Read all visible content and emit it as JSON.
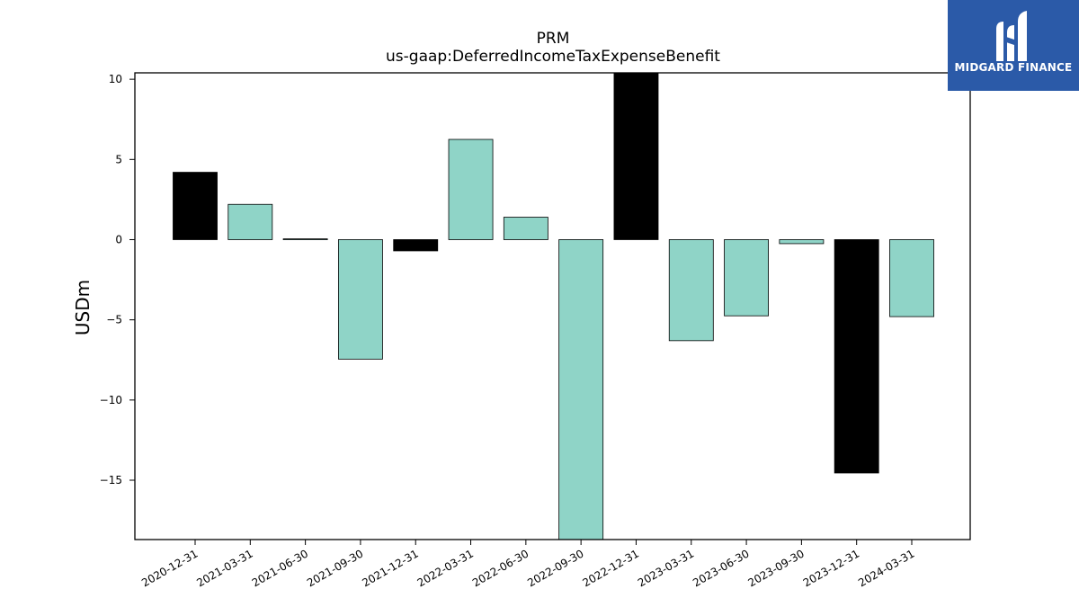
{
  "chart_data": {
    "type": "bar",
    "title": "PRM",
    "subtitle": "us-gaap:DeferredIncomeTaxExpenseBenefit",
    "xlabel": "",
    "ylabel": "USDm",
    "ylim": [
      -18.7,
      10.4
    ],
    "yticks": [
      10,
      5,
      0,
      -5,
      -10,
      -15
    ],
    "ytick_labels": [
      "10",
      "5",
      "0",
      "−5",
      "−10",
      "−15"
    ],
    "grid": false,
    "legend": "none",
    "categories": [
      "2020-12-31",
      "2021-03-31",
      "2021-06-30",
      "2021-09-30",
      "2021-12-31",
      "2022-03-31",
      "2022-06-30",
      "2022-09-30",
      "2022-12-31",
      "2023-03-31",
      "2023-06-30",
      "2023-09-30",
      "2023-12-31",
      "2024-03-31"
    ],
    "values": [
      4.2,
      2.2,
      0.05,
      -7.45,
      -0.7,
      6.25,
      1.4,
      -18.7,
      10.4,
      -6.3,
      -4.75,
      -0.25,
      -14.55,
      -4.8
    ],
    "highlight": [
      true,
      false,
      false,
      false,
      true,
      false,
      false,
      false,
      true,
      false,
      false,
      false,
      true,
      false
    ],
    "colors": {
      "normal": "#8fd4c7",
      "highlight": "#000000",
      "edge": "#000000"
    }
  },
  "logo": {
    "text": "MIDGARD FINANCE",
    "background": "#2b5aa8",
    "icon": "midgard-logo-icon"
  }
}
